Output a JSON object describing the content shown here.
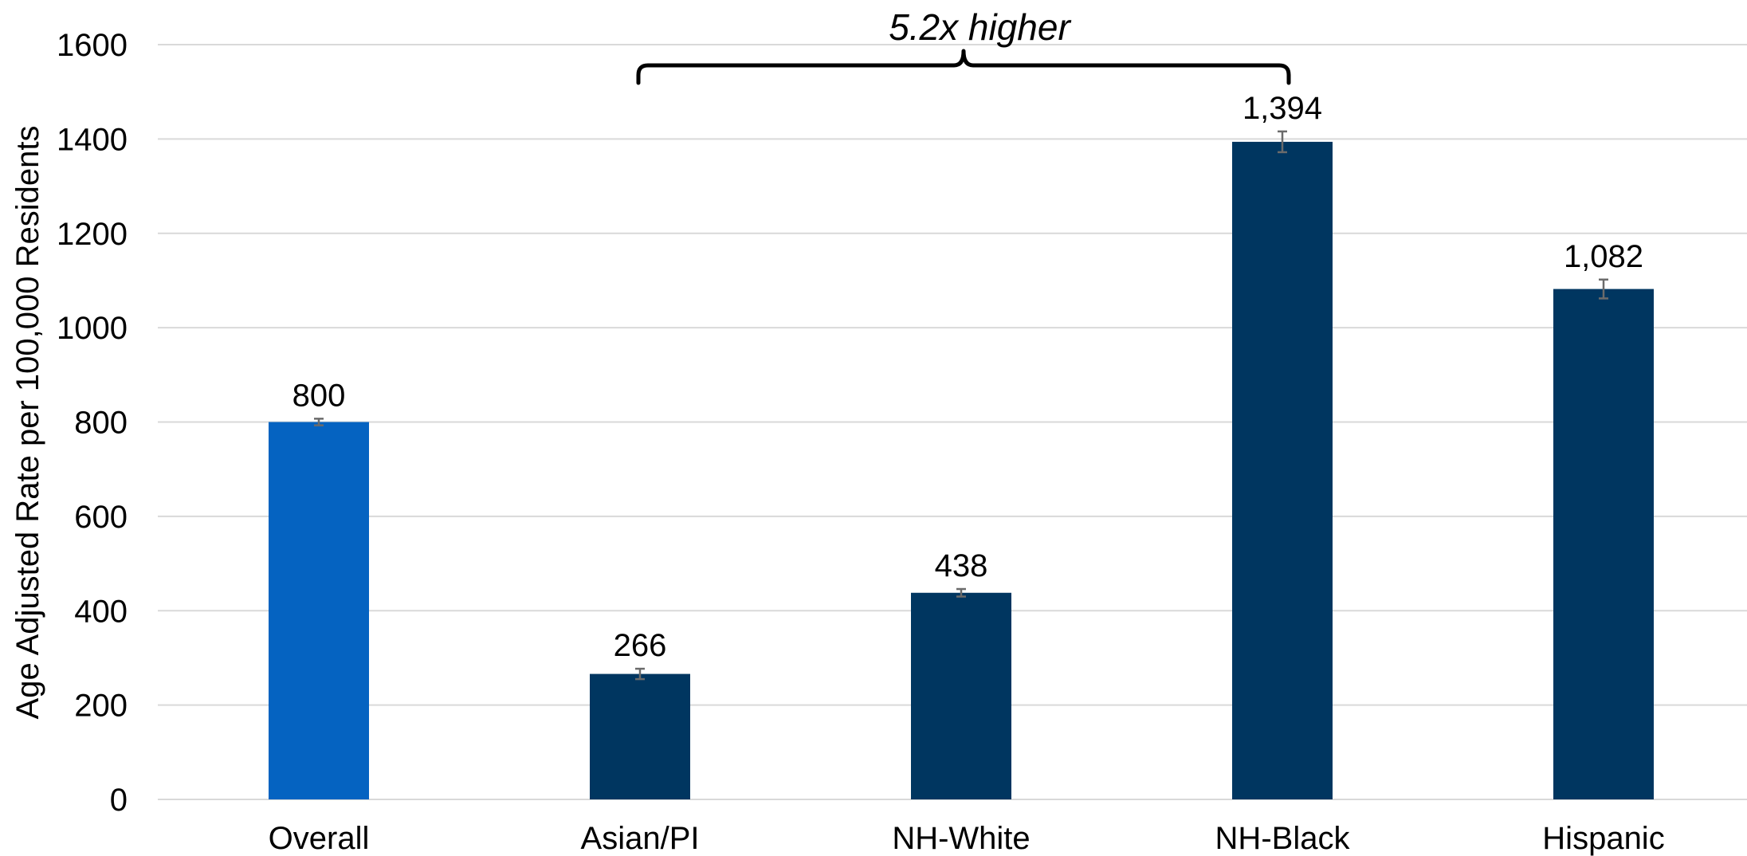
{
  "chart_data": {
    "type": "bar",
    "title": "",
    "xlabel": "",
    "ylabel": "Age Adjusted Rate per 100,000 Residents",
    "ylim": [
      0,
      1600
    ],
    "yticks": [
      0,
      200,
      400,
      600,
      800,
      1000,
      1200,
      1400,
      1600
    ],
    "grid": true,
    "legend": "none",
    "categories": [
      "Overall",
      "Asian/PI",
      "NH-White",
      "NH-Black",
      "Hispanic"
    ],
    "values": [
      800,
      266,
      438,
      1394,
      1082
    ],
    "data_labels": [
      "800",
      "266",
      "438",
      "1,394",
      "1,082"
    ],
    "error_bars": [
      {
        "low": 793,
        "high": 807
      },
      {
        "low": 255,
        "high": 277
      },
      {
        "low": 430,
        "high": 446
      },
      {
        "low": 1372,
        "high": 1416
      },
      {
        "low": 1062,
        "high": 1102
      }
    ],
    "colors": {
      "overall": "#0563C1",
      "groups": "#003660",
      "error_bar": "#6b6b6b",
      "grid": "#d9d9d9"
    },
    "annotation": {
      "text": "5.2x higher",
      "from_category": "Asian/PI",
      "to_category": "NH-Black"
    }
  }
}
